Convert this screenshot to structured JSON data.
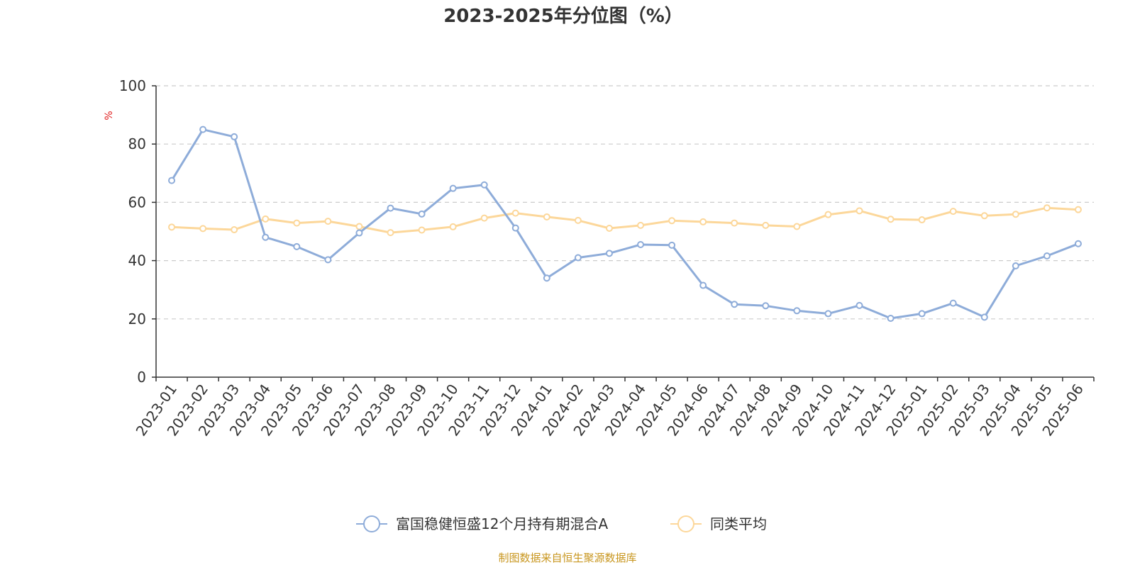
{
  "colors": {
    "series_a": "#8eacd9",
    "series_b": "#fcd79a",
    "title": "#333333",
    "axis": "#333333",
    "grid": "#cccccc",
    "unit": "#e02020",
    "source": "#c8961e",
    "legend_text": "#333333"
  },
  "source_note": "制图数据来自恒生聚源数据库",
  "chart_data": {
    "type": "line",
    "title": "2023-2025年分位图（%）",
    "ylabel": "%",
    "ylim": [
      0,
      100
    ],
    "yticks": [
      0,
      20,
      40,
      60,
      80,
      100
    ],
    "grid": true,
    "legend_position": "bottom",
    "categories": [
      "2023-01",
      "2023-02",
      "2023-03",
      "2023-04",
      "2023-05",
      "2023-06",
      "2023-07",
      "2023-08",
      "2023-09",
      "2023-10",
      "2023-11",
      "2023-12",
      "2024-01",
      "2024-02",
      "2024-03",
      "2024-04",
      "2024-05",
      "2024-06",
      "2024-07",
      "2024-08",
      "2024-09",
      "2024-10",
      "2024-11",
      "2024-12",
      "2025-01",
      "2025-02",
      "2025-03",
      "2025-04",
      "2025-05",
      "2025-06"
    ],
    "series": [
      {
        "name": "富国稳健恒盛12个月持有期混合A",
        "values": [
          67.5,
          85,
          82.5,
          48,
          44.8,
          40.3,
          49.5,
          58,
          56,
          64.8,
          66,
          51.2,
          34,
          41,
          42.5,
          45.5,
          45.3,
          31.5,
          25,
          24.5,
          22.8,
          21.8,
          24.6,
          20.2,
          21.8,
          25.4,
          20.6,
          38.2,
          41.6,
          45.8
        ]
      },
      {
        "name": "同类平均",
        "values": [
          51.5,
          51,
          50.6,
          54.3,
          52.9,
          53.5,
          51.7,
          49.6,
          50.5,
          51.6,
          54.6,
          56.3,
          55,
          53.8,
          51.1,
          52.1,
          53.7,
          53.3,
          52.9,
          52.1,
          51.7,
          55.8,
          57.1,
          54.2,
          54,
          56.9,
          55.4,
          55.9,
          58.1,
          57.5
        ]
      }
    ]
  }
}
